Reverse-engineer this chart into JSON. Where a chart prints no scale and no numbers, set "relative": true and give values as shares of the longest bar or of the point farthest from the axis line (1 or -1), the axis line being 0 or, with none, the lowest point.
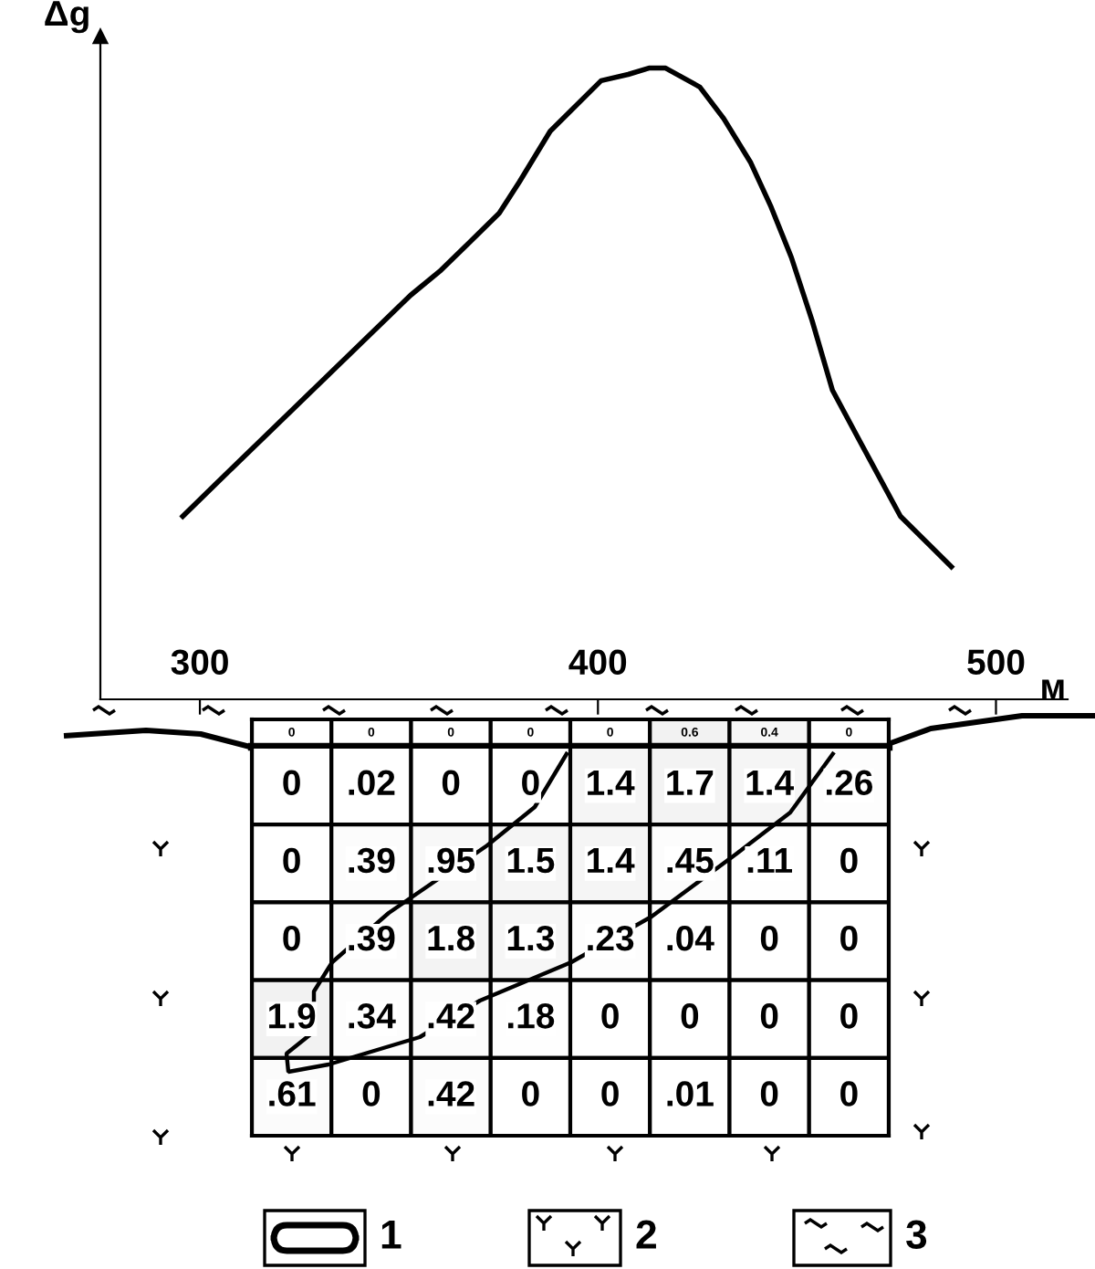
{
  "chart_data": [
    {
      "type": "line",
      "ylabel": "Δg",
      "xlabel": "м",
      "relative": true,
      "xlim": [
        275,
        518
      ],
      "xticks": [
        300,
        400,
        500
      ],
      "grid": false,
      "marker": "none",
      "line_style": "solid",
      "series": [
        {
          "color": "#000000",
          "x": [
            295.7,
            303.8,
            352.9,
            360.6,
            375.2,
            380.3,
            388.0,
            400.8,
            407.6,
            412.8,
            417.0,
            425.6,
            431.6,
            438.4,
            443.5,
            448.6,
            453.8,
            458.9,
            465.7,
            476.0,
            488.8
          ],
          "values": [
            0.29,
            0.34,
            0.64,
            0.68,
            0.77,
            0.82,
            0.9,
            0.98,
            0.99,
            1.0,
            1.0,
            0.97,
            0.92,
            0.85,
            0.78,
            0.7,
            0.6,
            0.49,
            0.41,
            0.29,
            0.21
          ]
        }
      ]
    },
    {
      "type": "heatmap",
      "categories": [
        null,
        null,
        null,
        null,
        null,
        null,
        null,
        null
      ],
      "y_categories": [
        null
      ],
      "cells": [
        [
          0,
          0,
          0,
          0,
          0,
          0.6,
          0.4,
          0
        ]
      ],
      "cell_labels": [
        [
          "0",
          "0",
          "0",
          "0",
          "0",
          "0.6",
          "0.4",
          "0"
        ]
      ]
    },
    {
      "type": "heatmap",
      "categories": [
        null,
        null,
        null,
        null,
        null,
        null,
        null,
        null
      ],
      "y_categories": [
        null,
        null,
        null,
        null,
        null
      ],
      "cells": [
        [
          0,
          0.02,
          0,
          0,
          1.4,
          1.7,
          1.4,
          0.26
        ],
        [
          0,
          0.39,
          0.95,
          1.5,
          1.4,
          0.45,
          0.11,
          0
        ],
        [
          0,
          0.39,
          1.8,
          1.3,
          0.23,
          0.04,
          0,
          0
        ],
        [
          1.9,
          0.34,
          0.42,
          0.18,
          0,
          0,
          0,
          0
        ],
        [
          0.61,
          0,
          0.42,
          0,
          0,
          0.01,
          0,
          0
        ]
      ],
      "cell_labels": [
        [
          "0",
          ".02",
          "0",
          "0",
          "1.4",
          "1.7",
          "1.4",
          ".26"
        ],
        [
          "0",
          ".39",
          ".95",
          "1.5",
          "1.4",
          ".45",
          ".11",
          "0"
        ],
        [
          "0",
          ".39",
          "1.8",
          "1.3",
          ".23",
          ".04",
          "0",
          "0"
        ],
        [
          "1.9",
          ".34",
          ".42",
          ".18",
          "0",
          "0",
          "0",
          "0"
        ],
        [
          ".61",
          "0",
          ".42",
          "0",
          "0",
          ".01",
          "0",
          "0"
        ]
      ],
      "annotations": [
        "1",
        "2",
        "3"
      ]
    }
  ]
}
